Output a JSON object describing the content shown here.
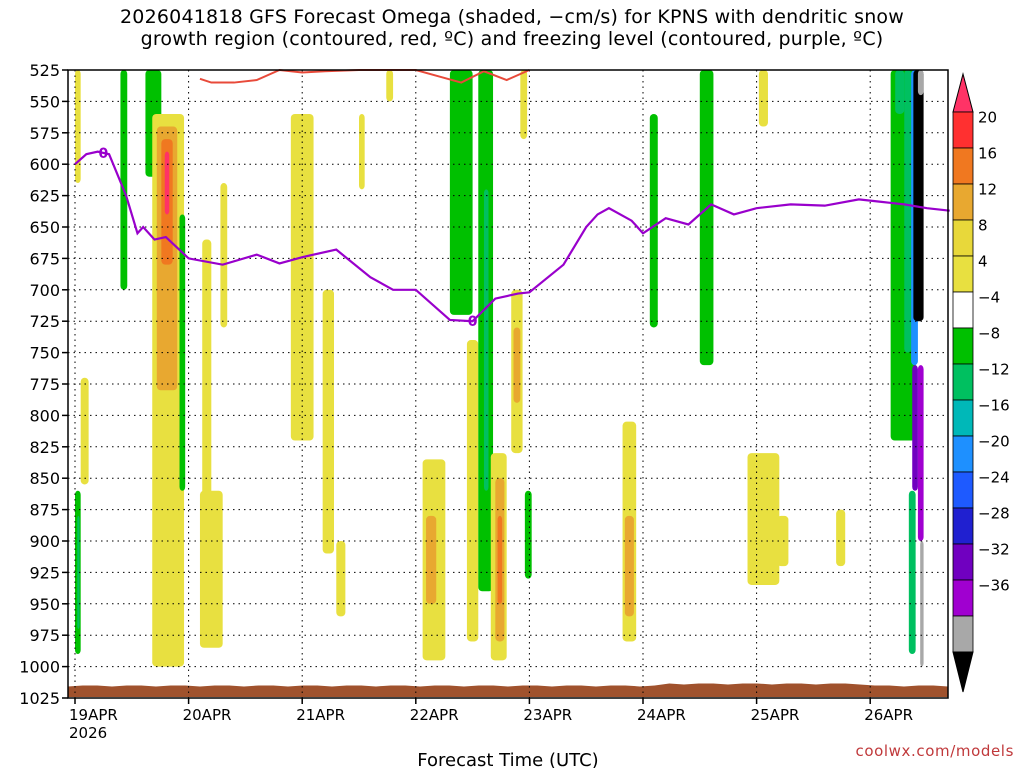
{
  "chart_data": {
    "type": "heatmap",
    "title_line1": "2026041818 GFS Forecast Omega (shaded, −cm/s) for KPNS with dendritic snow",
    "title_line2": "growth region (contoured, red, ºC) and freezing level (contoured, purple, ºC)",
    "xlabel": "Forecast Time (UTC)",
    "x_categories": [
      "19APR",
      "20APR",
      "21APR",
      "22APR",
      "23APR",
      "24APR",
      "25APR",
      "26APR"
    ],
    "x_year_label": "2026",
    "y_ticks": [
      525,
      550,
      575,
      600,
      625,
      650,
      675,
      700,
      725,
      750,
      775,
      800,
      825,
      850,
      875,
      900,
      925,
      950,
      975,
      1000,
      1025
    ],
    "ylim": [
      1025,
      525
    ],
    "colorbar_labels": [
      "20",
      "16",
      "12",
      "8",
      "4",
      "−4",
      "−8",
      "−12",
      "−16",
      "−20",
      "−24",
      "−28",
      "−32",
      "−36"
    ],
    "colorbar_colors": [
      "#ff3366",
      "#ff3030",
      "#f07820",
      "#e8a830",
      "#e8d83a",
      "#e8e040",
      "#ffffff",
      "#00c000",
      "#00c060",
      "#00b8b8",
      "#1e90ff",
      "#1e5aff",
      "#2020d0",
      "#7000c0",
      "#a000d0",
      "#a8a8a8",
      "#000000"
    ],
    "freezing_level": {
      "label": "0",
      "color": "#9900cc",
      "x": [
        0.0,
        0.1,
        0.2,
        0.3,
        0.35,
        0.45,
        0.55,
        0.6,
        0.7,
        0.8,
        1.0,
        1.3,
        1.6,
        1.8,
        2.0,
        2.3,
        2.6,
        2.8,
        3.0,
        3.3,
        3.5,
        3.7,
        3.9,
        4.0,
        4.3,
        4.5,
        4.6,
        4.7,
        4.9,
        5.0,
        5.2,
        5.4,
        5.6,
        5.8,
        6.0,
        6.3,
        6.6,
        6.9,
        7.1,
        7.3,
        7.5,
        7.7
      ],
      "y": [
        600,
        592,
        590,
        592,
        603,
        625,
        655,
        650,
        660,
        658,
        675,
        680,
        672,
        679,
        674,
        668,
        690,
        700,
        700,
        724,
        725,
        707,
        703,
        702,
        680,
        650,
        640,
        635,
        645,
        655,
        643,
        648,
        632,
        640,
        635,
        632,
        633,
        628,
        630,
        632,
        635,
        637
      ]
    },
    "dgz_contour": {
      "color": "#e84a3a",
      "x": [
        1.1,
        1.2,
        1.4,
        1.6,
        1.8,
        2.0,
        2.2,
        2.5,
        2.8,
        3.0,
        3.2,
        3.4,
        3.6,
        3.8,
        4.0
      ],
      "y": [
        532,
        535,
        535,
        533,
        525,
        527,
        526,
        525,
        525,
        525,
        530,
        535,
        526,
        533,
        525
      ]
    },
    "omega_regions": [
      {
        "x": 0.0,
        "x2": 0.05,
        "y": 860,
        "y2": 990,
        "c": "#00c000"
      },
      {
        "x": 0.02,
        "x2": 0.04,
        "y": 880,
        "y2": 970,
        "c": "#00c060"
      },
      {
        "x": 0.0,
        "x2": 0.05,
        "y": 525,
        "y2": 615,
        "c": "#e8e040"
      },
      {
        "x": 0.05,
        "x2": 0.12,
        "y": 770,
        "y2": 855,
        "c": "#e8e040"
      },
      {
        "x": 0.4,
        "x2": 0.46,
        "y": 525,
        "y2": 700,
        "c": "#00c000"
      },
      {
        "x": 0.62,
        "x2": 0.76,
        "y": 525,
        "y2": 610,
        "c": "#00c000"
      },
      {
        "x": 0.68,
        "x2": 0.96,
        "y": 560,
        "y2": 1000,
        "c": "#e8e040"
      },
      {
        "x": 0.72,
        "x2": 0.9,
        "y": 570,
        "y2": 780,
        "c": "#e8a830"
      },
      {
        "x": 0.76,
        "x2": 0.86,
        "y": 580,
        "y2": 680,
        "c": "#f07820"
      },
      {
        "x": 0.79,
        "x2": 0.83,
        "y": 590,
        "y2": 640,
        "c": "#ff3366"
      },
      {
        "x": 0.92,
        "x2": 0.97,
        "y": 640,
        "y2": 860,
        "c": "#00c000"
      },
      {
        "x": 1.1,
        "x2": 1.3,
        "y": 860,
        "y2": 985,
        "c": "#e8e040"
      },
      {
        "x": 1.12,
        "x2": 1.2,
        "y": 660,
        "y2": 880,
        "c": "#e8e040"
      },
      {
        "x": 1.28,
        "x2": 1.34,
        "y": 615,
        "y2": 730,
        "c": "#e8e040"
      },
      {
        "x": 1.9,
        "x2": 2.1,
        "y": 560,
        "y2": 820,
        "c": "#e8e040"
      },
      {
        "x": 2.18,
        "x2": 2.28,
        "y": 700,
        "y2": 910,
        "c": "#e8e040"
      },
      {
        "x": 2.3,
        "x2": 2.38,
        "y": 900,
        "y2": 960,
        "c": "#e8e040"
      },
      {
        "x": 2.5,
        "x2": 2.55,
        "y": 560,
        "y2": 620,
        "c": "#e8e040"
      },
      {
        "x": 2.74,
        "x2": 2.8,
        "y": 525,
        "y2": 550,
        "c": "#e8e040"
      },
      {
        "x": 3.06,
        "x2": 3.26,
        "y": 835,
        "y2": 995,
        "c": "#e8e040"
      },
      {
        "x": 3.09,
        "x2": 3.18,
        "y": 880,
        "y2": 950,
        "c": "#e8a830"
      },
      {
        "x": 3.3,
        "x2": 3.5,
        "y": 525,
        "y2": 720,
        "c": "#00c000"
      },
      {
        "x": 3.45,
        "x2": 3.55,
        "y": 740,
        "y2": 980,
        "c": "#e8e040"
      },
      {
        "x": 3.55,
        "x2": 3.68,
        "y": 525,
        "y2": 940,
        "c": "#00c000"
      },
      {
        "x": 3.6,
        "x2": 3.64,
        "y": 620,
        "y2": 860,
        "c": "#00c060"
      },
      {
        "x": 3.66,
        "x2": 3.8,
        "y": 830,
        "y2": 995,
        "c": "#e8e040"
      },
      {
        "x": 3.7,
        "x2": 3.78,
        "y": 850,
        "y2": 980,
        "c": "#e8a830"
      },
      {
        "x": 3.72,
        "x2": 3.76,
        "y": 880,
        "y2": 950,
        "c": "#f07820"
      },
      {
        "x": 3.84,
        "x2": 3.94,
        "y": 700,
        "y2": 830,
        "c": "#e8e040"
      },
      {
        "x": 3.86,
        "x2": 3.92,
        "y": 730,
        "y2": 790,
        "c": "#e8a830"
      },
      {
        "x": 3.96,
        "x2": 4.02,
        "y": 860,
        "y2": 930,
        "c": "#00c000"
      },
      {
        "x": 3.92,
        "x2": 3.98,
        "y": 525,
        "y2": 580,
        "c": "#e8e040"
      },
      {
        "x": 4.82,
        "x2": 4.94,
        "y": 805,
        "y2": 980,
        "c": "#e8e040"
      },
      {
        "x": 4.84,
        "x2": 4.92,
        "y": 880,
        "y2": 960,
        "c": "#e8a830"
      },
      {
        "x": 5.06,
        "x2": 5.13,
        "y": 560,
        "y2": 730,
        "c": "#00c000"
      },
      {
        "x": 5.5,
        "x2": 5.62,
        "y": 525,
        "y2": 760,
        "c": "#00c000"
      },
      {
        "x": 5.92,
        "x2": 6.2,
        "y": 830,
        "y2": 935,
        "c": "#e8e040"
      },
      {
        "x": 6.18,
        "x2": 6.28,
        "y": 880,
        "y2": 920,
        "c": "#e8e040"
      },
      {
        "x": 6.02,
        "x2": 6.1,
        "y": 525,
        "y2": 570,
        "c": "#e8e040"
      },
      {
        "x": 6.7,
        "x2": 6.78,
        "y": 875,
        "y2": 920,
        "c": "#e8e040"
      },
      {
        "x": 7.18,
        "x2": 7.4,
        "y": 525,
        "y2": 820,
        "c": "#00c000"
      },
      {
        "x": 7.22,
        "x2": 7.3,
        "y": 525,
        "y2": 560,
        "c": "#00c060"
      },
      {
        "x": 7.3,
        "x2": 7.36,
        "y": 525,
        "y2": 750,
        "c": "#00c060"
      },
      {
        "x": 7.36,
        "x2": 7.42,
        "y": 525,
        "y2": 760,
        "c": "#1e90ff"
      },
      {
        "x": 7.38,
        "x2": 7.47,
        "y": 525,
        "y2": 725,
        "c": "#000000"
      },
      {
        "x": 7.42,
        "x2": 7.47,
        "y": 525,
        "y2": 545,
        "c": "#a8a8a8"
      },
      {
        "x": 7.37,
        "x2": 7.42,
        "y": 760,
        "y2": 860,
        "c": "#7000c0"
      },
      {
        "x": 7.34,
        "x2": 7.4,
        "y": 860,
        "y2": 990,
        "c": "#00c060"
      },
      {
        "x": 7.42,
        "x2": 7.47,
        "y": 760,
        "y2": 900,
        "c": "#a000d0"
      },
      {
        "x": 7.44,
        "x2": 7.47,
        "y": 900,
        "y2": 1000,
        "c": "#a8a8a8"
      }
    ],
    "ground_color": "#a0522d",
    "ground_top": 1015
  },
  "watermark": "coolwx.com/models"
}
